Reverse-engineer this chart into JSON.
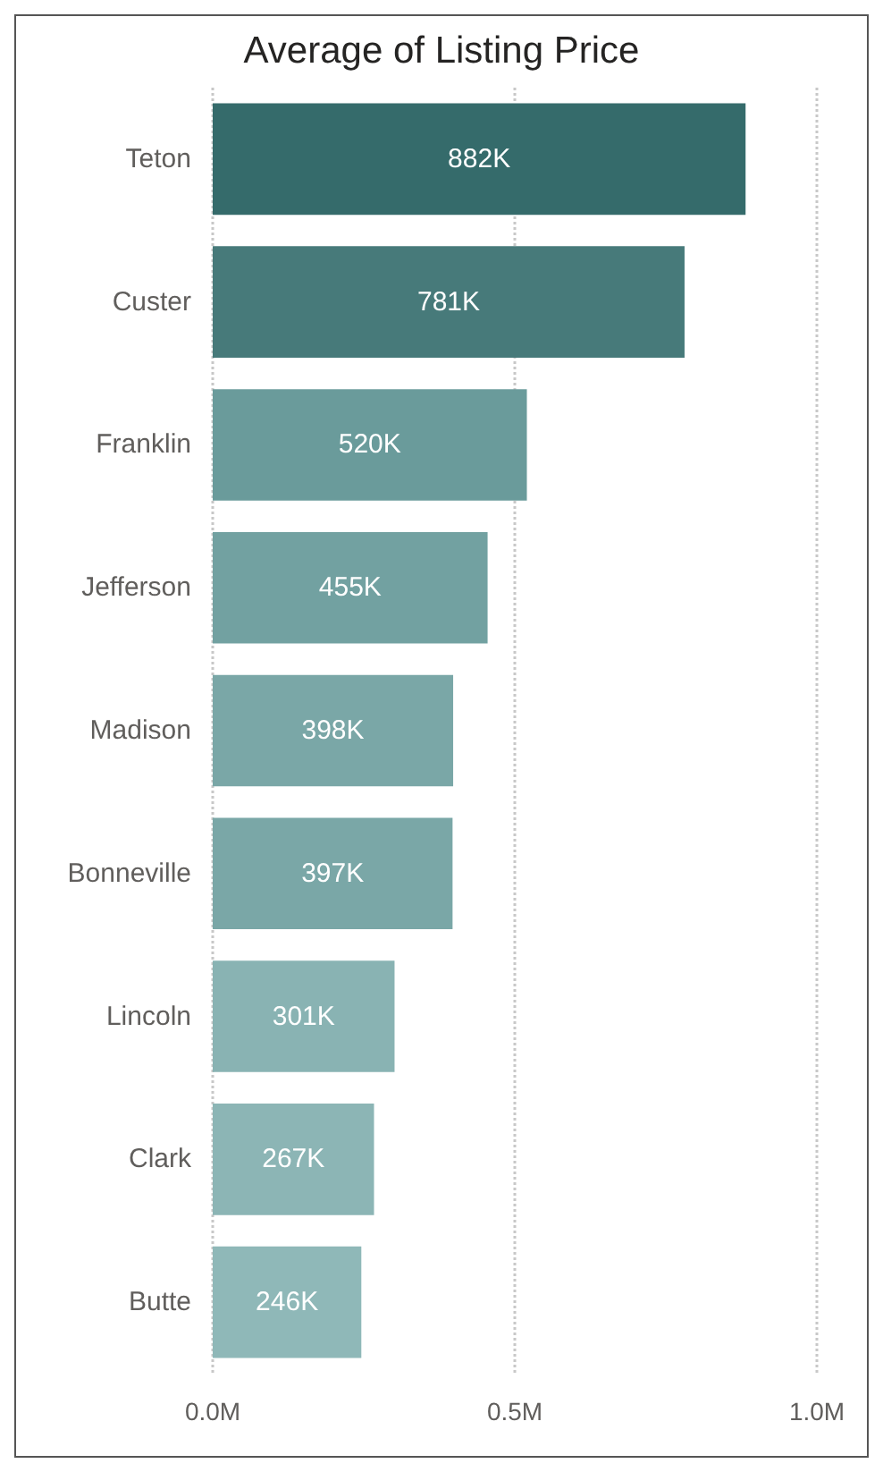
{
  "chart_data": {
    "type": "bar",
    "orientation": "horizontal",
    "title": "Average of Listing Price",
    "categories": [
      "Teton",
      "Custer",
      "Franklin",
      "Jefferson",
      "Madison",
      "Bonneville",
      "Lincoln",
      "Clark",
      "Butte"
    ],
    "values": [
      882000,
      781000,
      520000,
      455000,
      398000,
      397000,
      301000,
      267000,
      246000
    ],
    "value_labels": [
      "882K",
      "781K",
      "520K",
      "455K",
      "398K",
      "397K",
      "301K",
      "267K",
      "246K"
    ],
    "colors": [
      "#356b6b",
      "#477a7a",
      "#6a9b9b",
      "#72a1a1",
      "#7aa7a7",
      "#7aa7a7",
      "#89b3b3",
      "#8cb5b5",
      "#8fb8b8"
    ],
    "xlim": [
      0,
      1000000
    ],
    "xticks": [
      {
        "value": 0,
        "label": "0.0M"
      },
      {
        "value": 500000,
        "label": "0.5M"
      },
      {
        "value": 1000000,
        "label": "1.0M"
      }
    ],
    "grid": "x"
  }
}
